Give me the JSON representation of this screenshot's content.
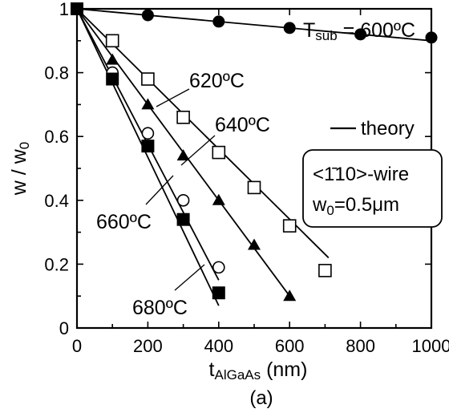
{
  "chart_data": {
    "type": "scatter",
    "xlim": [
      0,
      1000
    ],
    "ylim": [
      0,
      1.0
    ],
    "x_ticks": [
      0,
      200,
      400,
      600,
      800,
      1000
    ],
    "y_ticks": [
      0,
      0.2,
      0.4,
      0.6,
      0.8,
      1
    ],
    "x_tick_labels": [
      "0",
      "200",
      "400",
      "600",
      "800",
      "1000"
    ],
    "y_tick_labels": [
      "0",
      "0.2",
      "0.4",
      "0.6",
      "0.8",
      "1"
    ],
    "xlabel": {
      "main": "t",
      "sub": "AlGaAs",
      "unit": " (nm)"
    },
    "ylabel": {
      "main": "w / w",
      "sub": "0"
    },
    "panel_label": "(a)",
    "legend": {
      "line_label": "theory"
    },
    "info_box": {
      "line1": "<1̄10>-wire",
      "line2_main": "w",
      "line2_sub": "0",
      "line2_rest": "=0.5μm"
    },
    "series": [
      {
        "name_main": "T",
        "name_sub": "sub",
        "name_rest": " = 600ºC",
        "marker": "filled-circle",
        "points": [
          [
            0,
            1.0
          ],
          [
            200,
            0.98
          ],
          [
            400,
            0.96
          ],
          [
            600,
            0.94
          ],
          [
            800,
            0.92
          ],
          [
            1000,
            0.91
          ]
        ],
        "theory": [
          [
            0,
            1.0
          ],
          [
            1000,
            0.9
          ]
        ]
      },
      {
        "name": "620ºC",
        "marker": "open-square",
        "points": [
          [
            0,
            1.0
          ],
          [
            100,
            0.9
          ],
          [
            200,
            0.78
          ],
          [
            300,
            0.66
          ],
          [
            400,
            0.55
          ],
          [
            500,
            0.44
          ],
          [
            600,
            0.32
          ],
          [
            700,
            0.18
          ]
        ],
        "theory": [
          [
            0,
            1.0
          ],
          [
            710,
            0.22
          ]
        ]
      },
      {
        "name": "640ºC",
        "marker": "filled-triangle",
        "points": [
          [
            0,
            1.0
          ],
          [
            100,
            0.84
          ],
          [
            200,
            0.7
          ],
          [
            300,
            0.54
          ],
          [
            400,
            0.4
          ],
          [
            500,
            0.26
          ],
          [
            600,
            0.1
          ]
        ],
        "theory": [
          [
            0,
            1.0
          ],
          [
            600,
            0.1
          ]
        ]
      },
      {
        "name": "660ºC",
        "marker": "open-circle",
        "points": [
          [
            0,
            1.0
          ],
          [
            100,
            0.8
          ],
          [
            200,
            0.61
          ],
          [
            300,
            0.4
          ],
          [
            400,
            0.19
          ]
        ],
        "theory": [
          [
            0,
            1.0
          ],
          [
            400,
            0.15
          ]
        ]
      },
      {
        "name": "680ºC",
        "marker": "filled-square",
        "points": [
          [
            0,
            1.0
          ],
          [
            100,
            0.78
          ],
          [
            200,
            0.57
          ],
          [
            300,
            0.34
          ],
          [
            400,
            0.11
          ]
        ],
        "theory": [
          [
            0,
            1.0
          ],
          [
            400,
            0.07
          ]
        ]
      }
    ]
  }
}
